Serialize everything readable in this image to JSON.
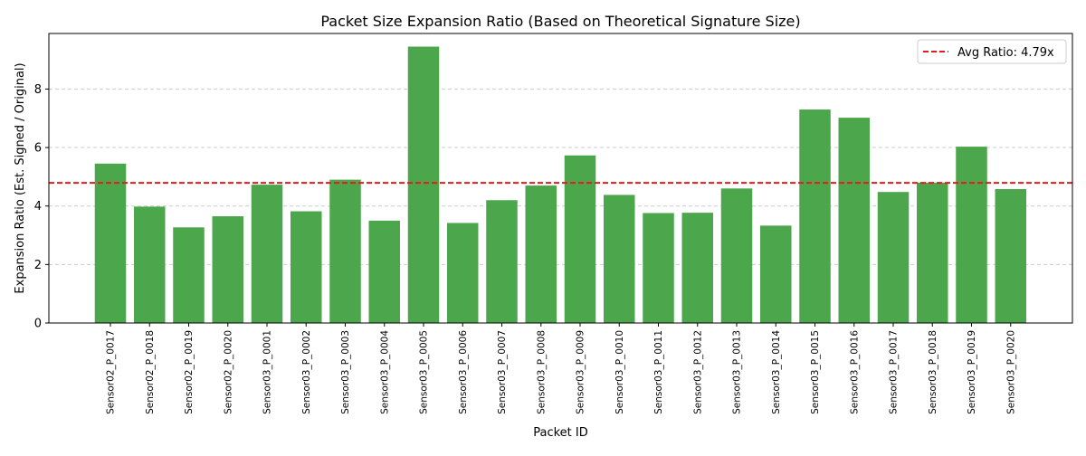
{
  "chart_data": {
    "type": "bar",
    "title": "Packet Size Expansion Ratio (Based on Theoretical Signature Size)",
    "xlabel": "Packet ID",
    "ylabel": "Expansion Ratio (Est. Signed / Original)",
    "ylim": [
      0,
      9.9
    ],
    "yticks": [
      0,
      2,
      4,
      6,
      8
    ],
    "grid": "y-dashed",
    "legend_position": "top-right",
    "bar_color": "#4ca64c",
    "avg_line_color": "#e41a1c",
    "categories": [
      "Sensor02_P_0017",
      "Sensor02_P_0018",
      "Sensor02_P_0019",
      "Sensor02_P_0020",
      "Sensor03_P_0001",
      "Sensor03_P_0002",
      "Sensor03_P_0003",
      "Sensor03_P_0004",
      "Sensor03_P_0005",
      "Sensor03_P_0006",
      "Sensor03_P_0007",
      "Sensor03_P_0008",
      "Sensor03_P_0009",
      "Sensor03_P_0010",
      "Sensor03_P_0011",
      "Sensor03_P_0012",
      "Sensor03_P_0013",
      "Sensor03_P_0014",
      "Sensor03_P_0015",
      "Sensor03_P_0016",
      "Sensor03_P_0017",
      "Sensor03_P_0018",
      "Sensor03_P_0019",
      "Sensor03_P_0020"
    ],
    "values": [
      5.45,
      3.98,
      3.27,
      3.65,
      4.73,
      3.82,
      4.9,
      3.5,
      9.45,
      3.42,
      4.2,
      4.7,
      5.73,
      4.38,
      3.76,
      3.77,
      4.6,
      3.33,
      7.3,
      7.02,
      4.48,
      4.8,
      6.03,
      4.58
    ],
    "avg_line": {
      "value": 4.79,
      "label": "Avg Ratio: 4.79x"
    }
  }
}
